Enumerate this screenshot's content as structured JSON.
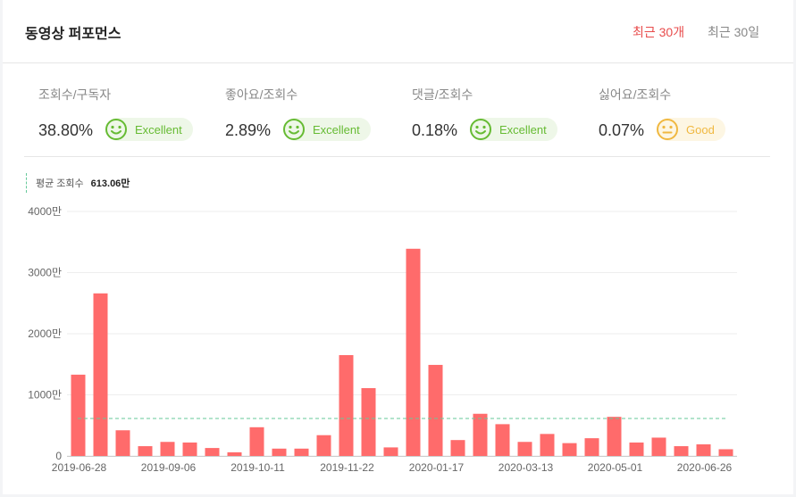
{
  "header": {
    "title": "동영상 퍼포먼스",
    "tabs": [
      {
        "label": "최근 30개",
        "active": true
      },
      {
        "label": "최근 30일",
        "active": false
      }
    ]
  },
  "metrics": [
    {
      "label": "조회수/구독자",
      "value": "38.80%",
      "rating": "Excellent",
      "face_icon": "smiley-icon"
    },
    {
      "label": "좋아요/조회수",
      "value": "2.89%",
      "rating": "Excellent",
      "face_icon": "smiley-icon"
    },
    {
      "label": "댓글/조회수",
      "value": "0.18%",
      "rating": "Excellent",
      "face_icon": "smiley-icon"
    },
    {
      "label": "싫어요/조회수",
      "value": "0.07%",
      "rating": "Good",
      "face_icon": "neutral-face-icon"
    }
  ],
  "colors": {
    "accent": "#e84c4c",
    "bar": "#ff6b6b",
    "average_line": "#66c99a",
    "excellent": "#66bb33",
    "good": "#f0b840"
  },
  "legend": {
    "label": "평균 조회수",
    "value": "613.06만"
  },
  "chart_data": {
    "type": "bar",
    "values": [
      1330,
      2660,
      420,
      160,
      230,
      220,
      130,
      60,
      470,
      120,
      120,
      340,
      1650,
      1110,
      140,
      3390,
      1490,
      260,
      690,
      520,
      230,
      360,
      210,
      290,
      640,
      220,
      300,
      160,
      190,
      110
    ],
    "average": 613.06,
    "ylim": [
      0,
      4000
    ],
    "y_ticks": [
      {
        "value": 0,
        "label": "0"
      },
      {
        "value": 1000,
        "label": "1000만"
      },
      {
        "value": 2000,
        "label": "2000만"
      },
      {
        "value": 3000,
        "label": "3000만"
      },
      {
        "value": 4000,
        "label": "4000만"
      }
    ],
    "x_labels": [
      {
        "index": 0,
        "label": "2019-06-28"
      },
      {
        "index": 4,
        "label": "2019-09-06"
      },
      {
        "index": 8,
        "label": "2019-10-11"
      },
      {
        "index": 12,
        "label": "2019-11-22"
      },
      {
        "index": 16,
        "label": "2020-01-17"
      },
      {
        "index": 20,
        "label": "2020-03-13"
      },
      {
        "index": 24,
        "label": "2020-05-01"
      },
      {
        "index": 28,
        "label": "2020-06-26"
      }
    ],
    "grid": true,
    "legend_position": "top-left"
  }
}
